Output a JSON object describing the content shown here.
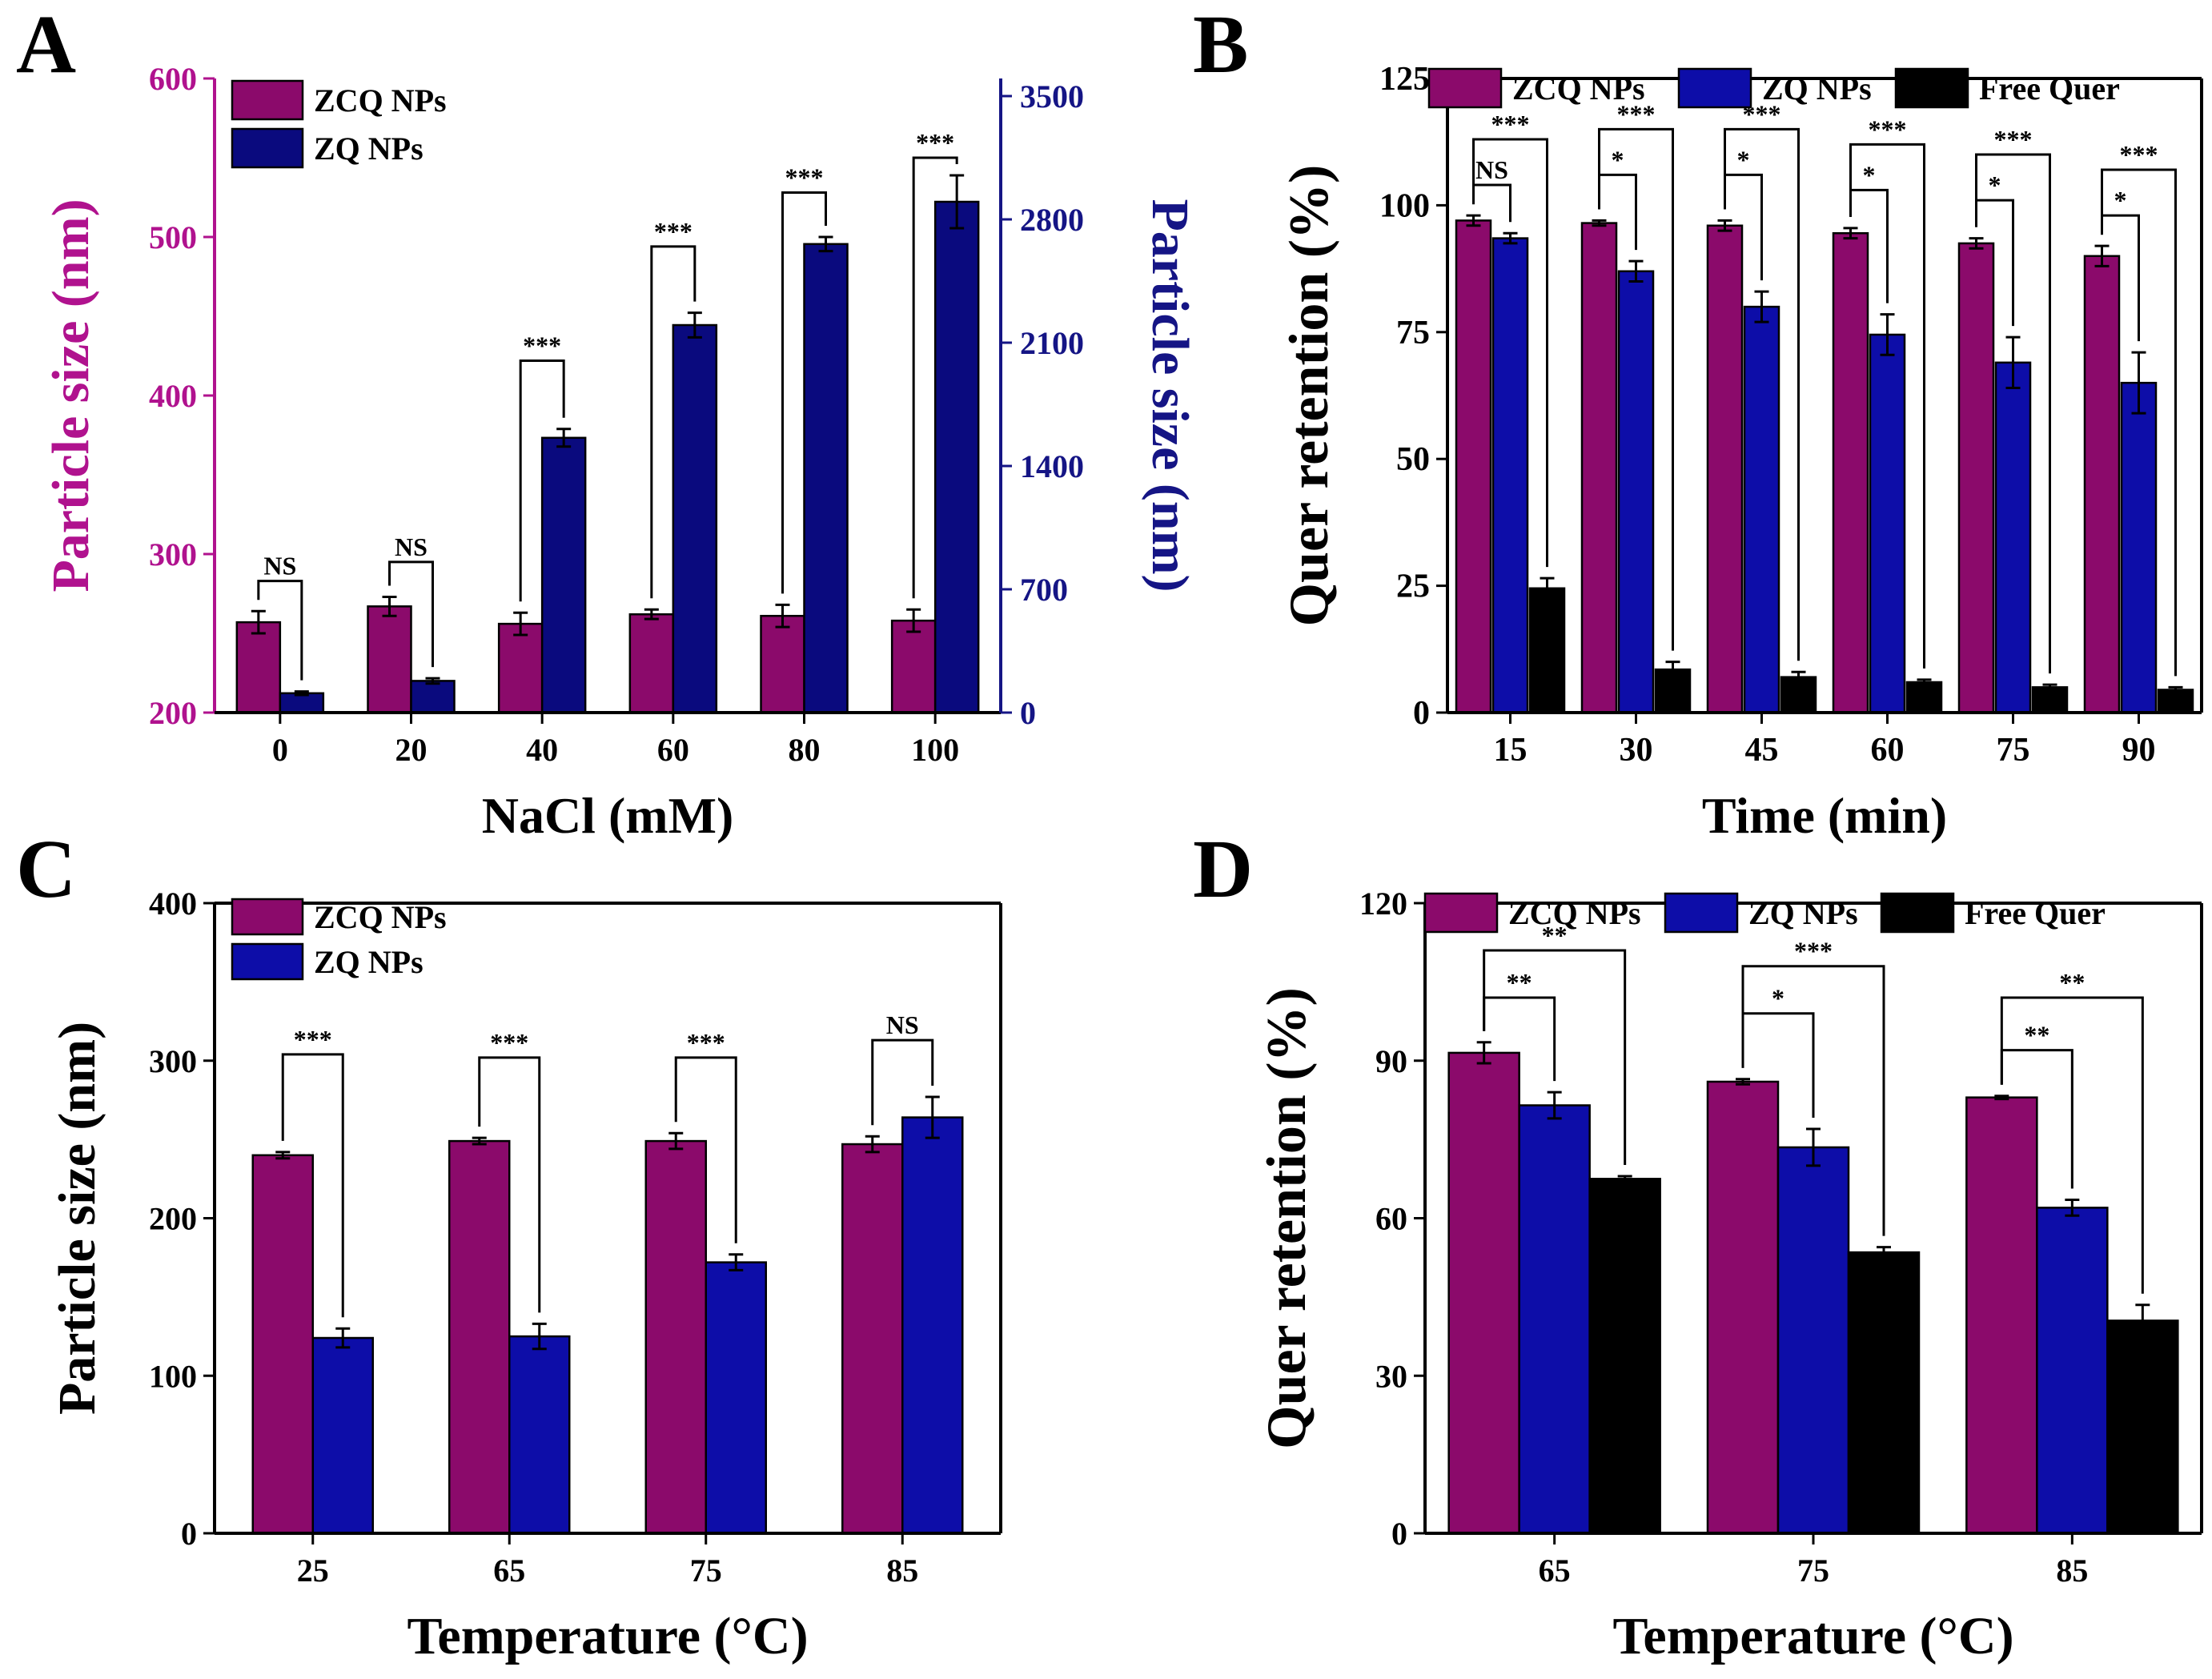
{
  "colors": {
    "zcq": "#8B0A6B",
    "zq": "#0D0DA8",
    "zq_dark": "#0A0A7E",
    "free": "#000000",
    "magenta_axis": "#B0128E",
    "navy_axis": "#151585"
  },
  "chart_data": [
    {
      "panel": "A",
      "type": "bar",
      "title": "",
      "xlabel": "NaCl (mM)",
      "ylabel": "Particle size (nm)",
      "y2label": "Particle size (nm)",
      "categories": [
        "0",
        "20",
        "40",
        "60",
        "80",
        "100"
      ],
      "ylim": [
        200,
        600
      ],
      "yticks": [
        "200",
        "300",
        "400",
        "500",
        "600"
      ],
      "y2lim": [
        0,
        3600
      ],
      "y2ticks": [
        "0",
        "700",
        "1400",
        "2100",
        "2800",
        "3500"
      ],
      "legend_position": "top-left",
      "series": [
        {
          "name": "ZCQ NPs",
          "axis": "left",
          "values": [
            257,
            267,
            256,
            262,
            261,
            258
          ],
          "errors": [
            7,
            6,
            7,
            3,
            7,
            7
          ]
        },
        {
          "name": "ZQ NPs",
          "axis": "right",
          "values": [
            110,
            180,
            1560,
            2200,
            2660,
            2900
          ],
          "errors": [
            10,
            15,
            50,
            70,
            40,
            150
          ]
        }
      ],
      "brackets": [
        {
          "category": 0,
          "from": 0,
          "to": 1,
          "label": "NS",
          "top": 283
        },
        {
          "category": 1,
          "from": 0,
          "to": 1,
          "label": "NS",
          "top": 295
        },
        {
          "category": 2,
          "from": 0,
          "to": 1,
          "label": "***",
          "top": 422
        },
        {
          "category": 3,
          "from": 0,
          "to": 1,
          "label": "***",
          "top": 494
        },
        {
          "category": 4,
          "from": 0,
          "to": 1,
          "label": "***",
          "top": 528
        },
        {
          "category": 5,
          "from": 0,
          "to": 1,
          "label": "***",
          "top": 550
        }
      ]
    },
    {
      "panel": "B",
      "type": "bar",
      "title": "",
      "xlabel": "Time (min)",
      "ylabel": "Quer retention (%)",
      "categories": [
        "15",
        "30",
        "45",
        "60",
        "75",
        "90"
      ],
      "ylim": [
        0,
        125
      ],
      "yticks": [
        "0",
        "25",
        "50",
        "75",
        "100",
        "125"
      ],
      "legend_position": "top",
      "series": [
        {
          "name": "ZCQ NPs",
          "values": [
            97,
            96.5,
            96,
            94.5,
            92.5,
            90
          ],
          "errors": [
            1,
            0.5,
            1,
            1,
            1,
            2
          ]
        },
        {
          "name": "ZQ NPs",
          "values": [
            93.5,
            87,
            80,
            74.5,
            69,
            65
          ],
          "errors": [
            1,
            2,
            3,
            4,
            5,
            6
          ]
        },
        {
          "name": "Free Quer",
          "values": [
            24.5,
            8.5,
            7,
            6,
            5,
            4.5
          ],
          "errors": [
            2,
            1.5,
            1,
            0.5,
            0.5,
            0.5
          ]
        }
      ],
      "brackets": [
        {
          "category": 0,
          "from": 0,
          "to": 1,
          "label": "NS",
          "top": 104
        },
        {
          "category": 0,
          "from": 0,
          "to": 2,
          "label": "***",
          "top": 113
        },
        {
          "category": 1,
          "from": 0,
          "to": 1,
          "label": "*",
          "top": 106
        },
        {
          "category": 1,
          "from": 0,
          "to": 2,
          "label": "***",
          "top": 115
        },
        {
          "category": 2,
          "from": 0,
          "to": 1,
          "label": "*",
          "top": 106
        },
        {
          "category": 2,
          "from": 0,
          "to": 2,
          "label": "***",
          "top": 115
        },
        {
          "category": 3,
          "from": 0,
          "to": 1,
          "label": "*",
          "top": 103
        },
        {
          "category": 3,
          "from": 0,
          "to": 2,
          "label": "***",
          "top": 112
        },
        {
          "category": 4,
          "from": 0,
          "to": 1,
          "label": "*",
          "top": 101
        },
        {
          "category": 4,
          "from": 0,
          "to": 2,
          "label": "***",
          "top": 110
        },
        {
          "category": 5,
          "from": 0,
          "to": 1,
          "label": "*",
          "top": 98
        },
        {
          "category": 5,
          "from": 0,
          "to": 2,
          "label": "***",
          "top": 107
        }
      ]
    },
    {
      "panel": "C",
      "type": "bar",
      "title": "",
      "xlabel": "Temperature (°C)",
      "ylabel": "Particle size (nm)",
      "categories": [
        "25",
        "65",
        "75",
        "85"
      ],
      "ylim": [
        0,
        400
      ],
      "yticks": [
        "0",
        "100",
        "200",
        "300",
        "400"
      ],
      "legend_position": "top-left",
      "series": [
        {
          "name": "ZCQ NPs",
          "values": [
            240,
            249,
            249,
            247
          ],
          "errors": [
            2,
            2,
            5,
            5
          ]
        },
        {
          "name": "ZQ NPs",
          "values": [
            124,
            125,
            172,
            264
          ],
          "errors": [
            6,
            8,
            5,
            13
          ]
        }
      ],
      "brackets": [
        {
          "category": 0,
          "from": 0,
          "to": 1,
          "label": "***",
          "top": 304
        },
        {
          "category": 1,
          "from": 0,
          "to": 1,
          "label": "***",
          "top": 302
        },
        {
          "category": 2,
          "from": 0,
          "to": 1,
          "label": "***",
          "top": 302
        },
        {
          "category": 3,
          "from": 0,
          "to": 1,
          "label": "NS",
          "top": 313
        }
      ]
    },
    {
      "panel": "D",
      "type": "bar",
      "title": "",
      "xlabel": "Temperature (°C)",
      "ylabel": "Quer retention (%)",
      "categories": [
        "65",
        "75",
        "85"
      ],
      "ylim": [
        0,
        120
      ],
      "yticks": [
        "0",
        "30",
        "60",
        "90",
        "120"
      ],
      "legend_position": "top",
      "series": [
        {
          "name": "ZCQ NPs",
          "values": [
            91.5,
            86,
            83
          ],
          "errors": [
            2,
            0.5,
            0.3
          ]
        },
        {
          "name": "ZQ NPs",
          "values": [
            81.5,
            73.5,
            62
          ],
          "errors": [
            2.5,
            3.5,
            1.5
          ]
        },
        {
          "name": "Free Quer",
          "values": [
            67.5,
            53.5,
            40.5
          ],
          "errors": [
            0.5,
            1,
            3
          ]
        }
      ],
      "brackets": [
        {
          "category": 0,
          "from": 0,
          "to": 1,
          "label": "**",
          "top": 102
        },
        {
          "category": 0,
          "from": 0,
          "to": 2,
          "label": "**",
          "top": 111
        },
        {
          "category": 1,
          "from": 0,
          "to": 1,
          "label": "*",
          "top": 99
        },
        {
          "category": 1,
          "from": 0,
          "to": 2,
          "label": "***",
          "top": 108
        },
        {
          "category": 2,
          "from": 0,
          "to": 1,
          "label": "**",
          "top": 92
        },
        {
          "category": 2,
          "from": 0,
          "to": 2,
          "label": "**",
          "top": 102
        }
      ]
    }
  ],
  "panel_letters": [
    "A",
    "B",
    "C",
    "D"
  ]
}
